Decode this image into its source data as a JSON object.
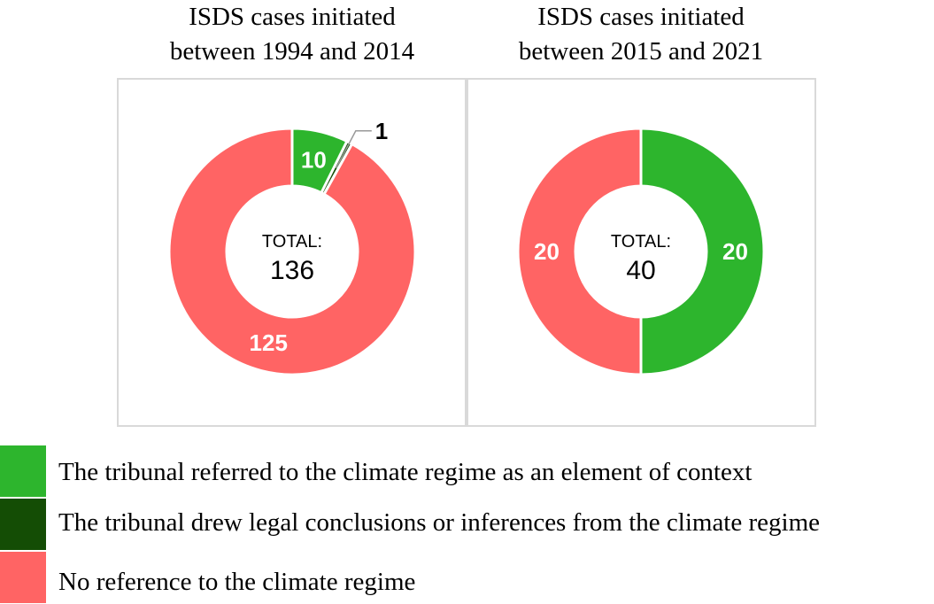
{
  "colors": {
    "context": "#2db52d",
    "legal": "#144d05",
    "none": "#ff6464"
  },
  "legend": [
    {
      "label": "The tribunal referred to the climate regime as an element of context",
      "color": "#2db52d"
    },
    {
      "label": "The tribunal drew legal conclusions or inferences from the climate regime",
      "color": "#144d05"
    },
    {
      "label": "No reference to the climate regime",
      "color": "#ff6464"
    }
  ],
  "chart_data": [
    {
      "type": "pie",
      "variant": "donut",
      "title": [
        "ISDS cases initiated",
        "between 1994 and 2014"
      ],
      "center_caption": "TOTAL:",
      "center_value": "136",
      "slices": [
        {
          "category": "The tribunal referred to the climate regime as an element of context",
          "value": 10,
          "label": "10",
          "color": "#2db52d"
        },
        {
          "category": "The tribunal drew legal conclusions or inferences from the climate regime",
          "value": 1,
          "label": "1",
          "color": "#144d05",
          "callout": true
        },
        {
          "category": "No reference to the climate regime",
          "value": 125,
          "label": "125",
          "color": "#ff6464"
        }
      ]
    },
    {
      "type": "pie",
      "variant": "donut",
      "title": [
        "ISDS cases initiated",
        "between 2015 and 2021"
      ],
      "center_caption": "TOTAL:",
      "center_value": "40",
      "slices": [
        {
          "category": "The tribunal referred to the climate regime as an element of context",
          "value": 20,
          "label": "20",
          "color": "#2db52d"
        },
        {
          "category": "No reference to the climate regime",
          "value": 20,
          "label": "20",
          "color": "#ff6464"
        }
      ]
    }
  ]
}
